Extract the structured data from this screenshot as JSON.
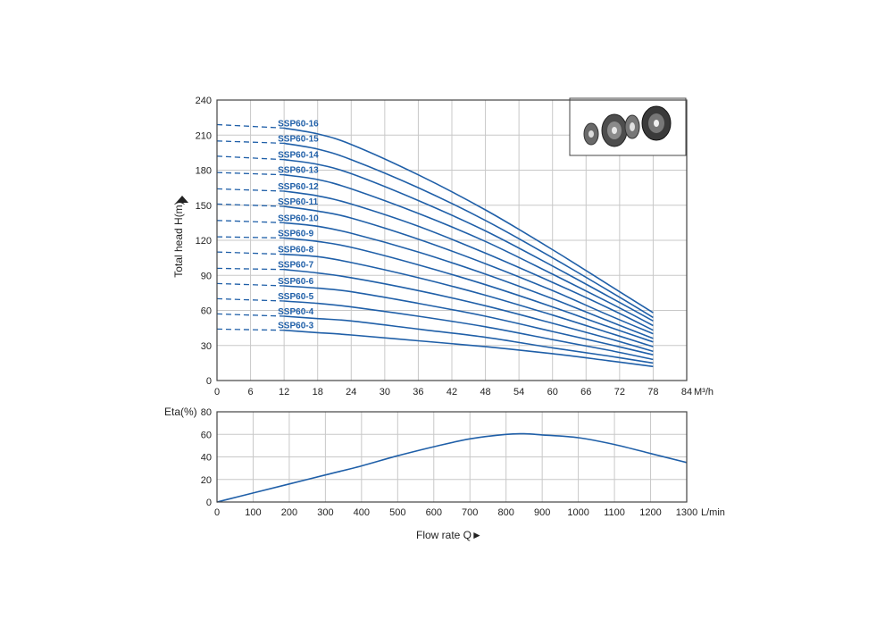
{
  "colors": {
    "curve": "#1f5fa8",
    "grid": "#c8c8c8",
    "frame": "#444444",
    "text": "#222222"
  },
  "chart_data": [
    {
      "type": "line",
      "title": "",
      "xlabel": "",
      "ylabel": "Total head H(m)",
      "x_unit": "M³/h",
      "xlim": [
        0,
        84
      ],
      "ylim": [
        0,
        240
      ],
      "x_ticks": [
        0,
        6,
        12,
        18,
        24,
        30,
        36,
        42,
        48,
        54,
        60,
        66,
        72,
        78,
        84
      ],
      "y_ticks": [
        0,
        30,
        60,
        90,
        120,
        150,
        180,
        210,
        240
      ],
      "grid": true,
      "dashed_from_x": 0,
      "solid_from_x": 12,
      "series": [
        {
          "name": "SSP60-16",
          "points": [
            [
              0,
              219
            ],
            [
              12,
              216
            ],
            [
              18,
              211
            ],
            [
              24,
              202
            ],
            [
              36,
              176
            ],
            [
              48,
              146
            ],
            [
              60,
              112
            ],
            [
              70,
              82
            ],
            [
              78,
              58
            ]
          ]
        },
        {
          "name": "SSP60-15",
          "points": [
            [
              0,
              205
            ],
            [
              12,
              203
            ],
            [
              18,
              198
            ],
            [
              24,
              189
            ],
            [
              36,
              165
            ],
            [
              48,
              137
            ],
            [
              60,
              105
            ],
            [
              70,
              77
            ],
            [
              78,
              54
            ]
          ]
        },
        {
          "name": "SSP60-14",
          "points": [
            [
              0,
              192
            ],
            [
              12,
              189
            ],
            [
              18,
              185
            ],
            [
              24,
              177
            ],
            [
              36,
              154
            ],
            [
              48,
              128
            ],
            [
              60,
              98
            ],
            [
              70,
              72
            ],
            [
              78,
              51
            ]
          ]
        },
        {
          "name": "SSP60-13",
          "points": [
            [
              0,
              178
            ],
            [
              12,
              176
            ],
            [
              18,
              172
            ],
            [
              24,
              164
            ],
            [
              36,
              143
            ],
            [
              48,
              119
            ],
            [
              60,
              91
            ],
            [
              70,
              67
            ],
            [
              78,
              47
            ]
          ]
        },
        {
          "name": "SSP60-12",
          "points": [
            [
              0,
              164
            ],
            [
              12,
              162
            ],
            [
              18,
              158
            ],
            [
              24,
              151
            ],
            [
              36,
              132
            ],
            [
              48,
              109
            ],
            [
              60,
              84
            ],
            [
              70,
              62
            ],
            [
              78,
              43
            ]
          ]
        },
        {
          "name": "SSP60-11",
          "points": [
            [
              0,
              151
            ],
            [
              12,
              149
            ],
            [
              18,
              145
            ],
            [
              24,
              139
            ],
            [
              36,
              121
            ],
            [
              48,
              100
            ],
            [
              60,
              77
            ],
            [
              70,
              56
            ],
            [
              78,
              40
            ]
          ]
        },
        {
          "name": "SSP60-10",
          "points": [
            [
              0,
              137
            ],
            [
              12,
              135
            ],
            [
              18,
              132
            ],
            [
              24,
              126
            ],
            [
              36,
              110
            ],
            [
              48,
              91
            ],
            [
              60,
              70
            ],
            [
              70,
              51
            ],
            [
              78,
              36
            ]
          ]
        },
        {
          "name": "SSP60-9",
          "points": [
            [
              0,
              123
            ],
            [
              12,
              122
            ],
            [
              18,
              119
            ],
            [
              24,
              114
            ],
            [
              36,
              99
            ],
            [
              48,
              82
            ],
            [
              60,
              63
            ],
            [
              70,
              46
            ],
            [
              78,
              33
            ]
          ]
        },
        {
          "name": "SSP60-8",
          "points": [
            [
              0,
              110
            ],
            [
              12,
              108
            ],
            [
              18,
              106
            ],
            [
              24,
              101
            ],
            [
              36,
              88
            ],
            [
              48,
              73
            ],
            [
              60,
              56
            ],
            [
              70,
              41
            ],
            [
              78,
              29
            ]
          ]
        },
        {
          "name": "SSP60-7",
          "points": [
            [
              0,
              96
            ],
            [
              12,
              95
            ],
            [
              18,
              92
            ],
            [
              24,
              88
            ],
            [
              36,
              77
            ],
            [
              48,
              64
            ],
            [
              60,
              49
            ],
            [
              70,
              36
            ],
            [
              78,
              25
            ]
          ]
        },
        {
          "name": "SSP60-6",
          "points": [
            [
              0,
              83
            ],
            [
              12,
              81
            ],
            [
              18,
              79
            ],
            [
              24,
              76
            ],
            [
              36,
              66
            ],
            [
              48,
              55
            ],
            [
              60,
              42
            ],
            [
              70,
              31
            ],
            [
              78,
              22
            ]
          ]
        },
        {
          "name": "SSP60-5",
          "points": [
            [
              0,
              70
            ],
            [
              12,
              68
            ],
            [
              18,
              66
            ],
            [
              24,
              63
            ],
            [
              36,
              55
            ],
            [
              48,
              46
            ],
            [
              60,
              35
            ],
            [
              70,
              26
            ],
            [
              78,
              18
            ]
          ]
        },
        {
          "name": "SSP60-4",
          "points": [
            [
              0,
              57
            ],
            [
              12,
              55
            ],
            [
              18,
              53
            ],
            [
              24,
              51
            ],
            [
              36,
              44
            ],
            [
              48,
              37
            ],
            [
              60,
              28
            ],
            [
              70,
              21
            ],
            [
              78,
              15
            ]
          ]
        },
        {
          "name": "SSP60-3",
          "points": [
            [
              0,
              44
            ],
            [
              12,
              43
            ],
            [
              18,
              41
            ],
            [
              24,
              39
            ],
            [
              36,
              34
            ],
            [
              48,
              29
            ],
            [
              60,
              23
            ],
            [
              70,
              17
            ],
            [
              78,
              12
            ]
          ]
        }
      ]
    },
    {
      "type": "line",
      "title": "",
      "xlabel": "Flow rate Q►",
      "ylabel": "Eta(%)",
      "x_unit": "L/min",
      "xlim": [
        0,
        1300
      ],
      "ylim": [
        0,
        80
      ],
      "x_ticks": [
        0,
        100,
        200,
        300,
        400,
        500,
        600,
        700,
        800,
        900,
        1000,
        1100,
        1200,
        1300
      ],
      "y_ticks": [
        0,
        20,
        40,
        60,
        80
      ],
      "grid": true,
      "series": [
        {
          "points": [
            [
              0,
              0
            ],
            [
              100,
              8
            ],
            [
              200,
              16
            ],
            [
              300,
              24
            ],
            [
              400,
              32
            ],
            [
              500,
              41
            ],
            [
              600,
              49
            ],
            [
              700,
              56
            ],
            [
              800,
              60
            ],
            [
              850,
              60.5
            ],
            [
              900,
              59.5
            ],
            [
              1000,
              57
            ],
            [
              1100,
              51
            ],
            [
              1200,
              43
            ],
            [
              1300,
              35
            ]
          ]
        }
      ]
    }
  ]
}
